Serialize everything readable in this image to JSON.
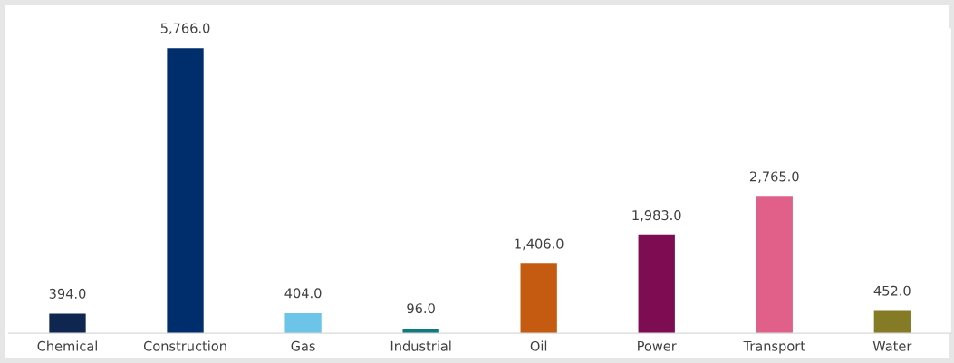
{
  "chart_data": {
    "type": "bar",
    "categories": [
      "Chemical",
      "Construction",
      "Gas",
      "Industrial",
      "Oil",
      "Power",
      "Transport",
      "Water"
    ],
    "values": [
      394.0,
      5766.0,
      404.0,
      96.0,
      1406.0,
      1983.0,
      2765.0,
      452.0
    ],
    "value_labels": [
      "394.0",
      "5,766.0",
      "404.0",
      "96.0",
      "1,406.0",
      "1,983.0",
      "2,765.0",
      "452.0"
    ],
    "colors": [
      "#0f2650",
      "#002d6b",
      "#6cc4e8",
      "#0d7b80",
      "#c55a11",
      "#7e0c52",
      "#e0608a",
      "#857b27"
    ],
    "grid": false,
    "legend": false
  }
}
